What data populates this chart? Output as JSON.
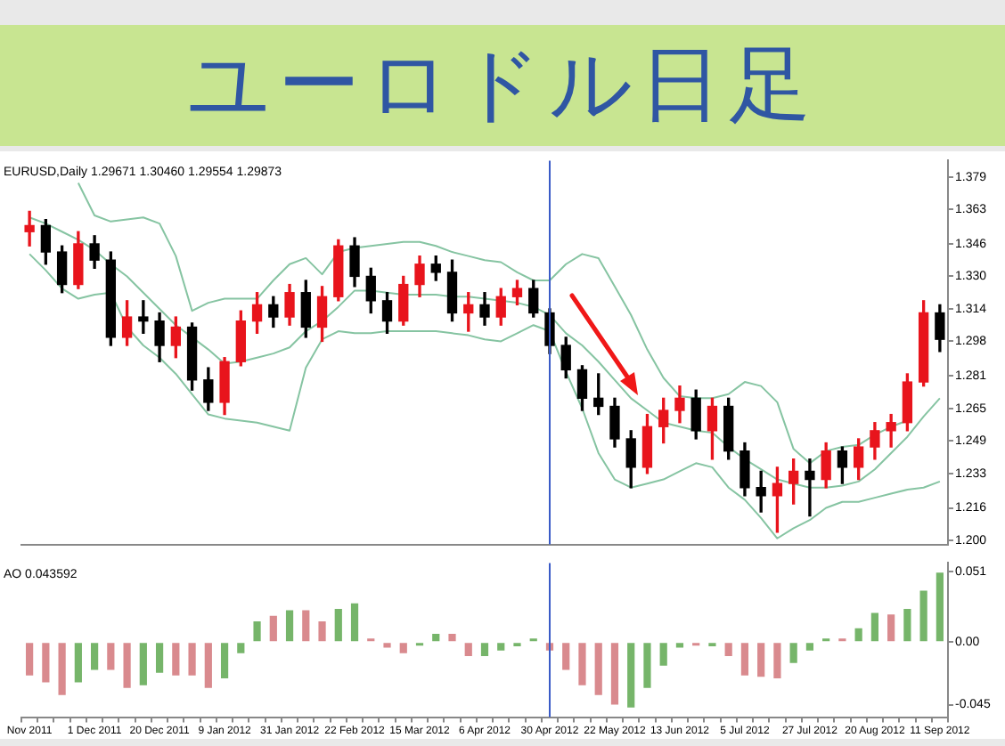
{
  "chart_data": [
    {
      "type": "candlestick",
      "title": "ユーロドル日足",
      "annotations": [
        "EURUSD,Daily 1.29671 1.30460 1.29554 1.29873"
      ],
      "categories": [
        "Nov 2011",
        null,
        null,
        null,
        "1 Dec 2011",
        null,
        null,
        null,
        "20 Dec 2011",
        null,
        null,
        null,
        "9 Jan 2012",
        null,
        null,
        null,
        "31 Jan 2012",
        null,
        null,
        null,
        "22 Feb 2012",
        null,
        null,
        null,
        "15 Mar 2012",
        null,
        null,
        null,
        "6 Apr 2012",
        null,
        null,
        null,
        "30 Apr 2012",
        null,
        null,
        null,
        "22 May 2012",
        null,
        null,
        null,
        "13 Jun 2012",
        null,
        null,
        null,
        "5 Jul 2012",
        null,
        null,
        null,
        "27 Jul 2012",
        null,
        null,
        null,
        "20 Aug 2012",
        null,
        null,
        null,
        "11 Sep 2012"
      ],
      "ohlc": [
        [
          1.352,
          1.362,
          1.345,
          1.355
        ],
        [
          1.355,
          1.358,
          1.336,
          1.342
        ],
        [
          1.342,
          1.345,
          1.322,
          1.326
        ],
        [
          1.326,
          1.352,
          1.324,
          1.346
        ],
        [
          1.346,
          1.35,
          1.334,
          1.338
        ],
        [
          1.338,
          1.342,
          1.296,
          1.3
        ],
        [
          1.3,
          1.318,
          1.296,
          1.31
        ],
        [
          1.31,
          1.318,
          1.302,
          1.308
        ],
        [
          1.308,
          1.312,
          1.288,
          1.296
        ],
        [
          1.296,
          1.31,
          1.29,
          1.305
        ],
        [
          1.305,
          1.307,
          1.274,
          1.279
        ],
        [
          1.279,
          1.285,
          1.264,
          1.268
        ],
        [
          1.268,
          1.29,
          1.262,
          1.288
        ],
        [
          1.288,
          1.313,
          1.286,
          1.308
        ],
        [
          1.308,
          1.322,
          1.302,
          1.316
        ],
        [
          1.316,
          1.32,
          1.305,
          1.31
        ],
        [
          1.31,
          1.326,
          1.306,
          1.322
        ],
        [
          1.322,
          1.328,
          1.3,
          1.305
        ],
        [
          1.305,
          1.325,
          1.298,
          1.32
        ],
        [
          1.32,
          1.348,
          1.318,
          1.345
        ],
        [
          1.345,
          1.349,
          1.325,
          1.33
        ],
        [
          1.33,
          1.334,
          1.312,
          1.318
        ],
        [
          1.318,
          1.322,
          1.302,
          1.308
        ],
        [
          1.308,
          1.33,
          1.306,
          1.326
        ],
        [
          1.326,
          1.34,
          1.32,
          1.336
        ],
        [
          1.336,
          1.34,
          1.328,
          1.332
        ],
        [
          1.332,
          1.338,
          1.308,
          1.312
        ],
        [
          1.312,
          1.322,
          1.303,
          1.316
        ],
        [
          1.316,
          1.322,
          1.306,
          1.31
        ],
        [
          1.31,
          1.324,
          1.306,
          1.32
        ],
        [
          1.32,
          1.328,
          1.316,
          1.324
        ],
        [
          1.324,
          1.328,
          1.31,
          1.312
        ],
        [
          1.312,
          1.314,
          1.292,
          1.296
        ],
        [
          1.296,
          1.3,
          1.28,
          1.284
        ],
        [
          1.284,
          1.286,
          1.264,
          1.27
        ],
        [
          1.27,
          1.282,
          1.262,
          1.266
        ],
        [
          1.266,
          1.27,
          1.246,
          1.25
        ],
        [
          1.25,
          1.254,
          1.226,
          1.236
        ],
        [
          1.236,
          1.262,
          1.233,
          1.256
        ],
        [
          1.256,
          1.27,
          1.248,
          1.264
        ],
        [
          1.264,
          1.276,
          1.258,
          1.27
        ],
        [
          1.27,
          1.274,
          1.25,
          1.254
        ],
        [
          1.254,
          1.27,
          1.24,
          1.266
        ],
        [
          1.266,
          1.27,
          1.24,
          1.244
        ],
        [
          1.244,
          1.248,
          1.222,
          1.226
        ],
        [
          1.226,
          1.234,
          1.214,
          1.222
        ],
        [
          1.222,
          1.236,
          1.204,
          1.228
        ],
        [
          1.228,
          1.24,
          1.218,
          1.234
        ],
        [
          1.234,
          1.24,
          1.212,
          1.23
        ],
        [
          1.23,
          1.248,
          1.226,
          1.244
        ],
        [
          1.244,
          1.246,
          1.228,
          1.236
        ],
        [
          1.236,
          1.25,
          1.23,
          1.246
        ],
        [
          1.246,
          1.258,
          1.24,
          1.254
        ],
        [
          1.254,
          1.262,
          1.246,
          1.258
        ],
        [
          1.258,
          1.282,
          1.254,
          1.278
        ],
        [
          1.278,
          1.318,
          1.276,
          1.312
        ],
        [
          1.312,
          1.316,
          1.293,
          1.299
        ]
      ],
      "colors": [
        "#e8141c",
        "#000000",
        "#000000",
        "#e8141c",
        "#000000",
        "#000000",
        "#e8141c",
        "#000000",
        "#000000",
        "#e8141c",
        "#000000",
        "#000000",
        "#e8141c",
        "#e8141c",
        "#e8141c",
        "#000000",
        "#e8141c",
        "#000000",
        "#e8141c",
        "#e8141c",
        "#000000",
        "#000000",
        "#000000",
        "#e8141c",
        "#e8141c",
        "#000000",
        "#000000",
        "#e8141c",
        "#000000",
        "#e8141c",
        "#e8141c",
        "#000000",
        "#000000",
        "#000000",
        "#000000",
        "#000000",
        "#000000",
        "#000000",
        "#e8141c",
        "#e8141c",
        "#e8141c",
        "#000000",
        "#e8141c",
        "#000000",
        "#000000",
        "#000000",
        "#e8141c",
        "#e8141c",
        "#000000",
        "#e8141c",
        "#000000",
        "#e8141c",
        "#e8141c",
        "#e8141c",
        "#e8141c",
        "#e8141c",
        "#000000"
      ],
      "series": [
        {
          "type": "line",
          "color": "#86c4a2",
          "values": [
            null,
            null,
            null,
            1.376,
            1.36,
            1.357,
            1.358,
            1.359,
            1.356,
            1.34,
            1.313,
            1.317,
            1.319,
            1.319,
            1.319,
            1.328,
            1.336,
            1.339,
            1.331,
            1.342,
            1.344,
            1.345,
            1.346,
            1.347,
            1.347,
            1.345,
            1.342,
            1.34,
            1.338,
            1.337,
            1.332,
            1.328,
            1.328,
            1.336,
            1.341,
            1.339,
            1.325,
            1.311,
            1.294,
            1.28,
            1.271,
            1.27,
            1.27,
            1.272,
            1.278,
            1.276,
            1.268,
            1.245,
            1.238,
            1.244,
            1.246,
            1.247,
            1.252,
            1.256,
            1.259,
            null,
            null
          ]
        },
        {
          "type": "line",
          "color": "#86c4a2",
          "values": [
            1.359,
            1.356,
            1.352,
            1.348,
            1.343,
            1.336,
            1.33,
            1.322,
            1.314,
            1.306,
            1.3,
            1.294,
            1.287,
            1.288,
            1.29,
            1.292,
            1.295,
            1.303,
            1.308,
            1.315,
            1.323,
            1.323,
            1.322,
            1.321,
            1.321,
            1.321,
            1.32,
            1.32,
            1.319,
            1.318,
            1.317,
            1.315,
            1.311,
            1.302,
            1.296,
            1.288,
            1.279,
            1.27,
            1.264,
            1.258,
            1.256,
            1.254,
            1.253,
            1.246,
            1.24,
            1.235,
            1.23,
            1.228,
            1.226,
            1.226,
            1.227,
            1.229,
            1.235,
            1.243,
            1.251,
            1.261,
            1.27
          ]
        },
        {
          "type": "line",
          "color": "#86c4a2",
          "values": [
            1.341,
            1.333,
            1.324,
            1.319,
            1.321,
            1.322,
            1.305,
            1.296,
            1.29,
            1.282,
            1.272,
            1.262,
            1.26,
            1.259,
            1.258,
            1.256,
            1.254,
            1.285,
            1.299,
            1.303,
            1.302,
            1.302,
            1.303,
            1.303,
            1.303,
            1.303,
            1.302,
            1.301,
            1.299,
            1.298,
            1.302,
            1.306,
            1.303,
            1.283,
            1.265,
            1.243,
            1.23,
            1.226,
            1.228,
            1.23,
            1.234,
            1.238,
            1.236,
            1.226,
            1.22,
            1.211,
            1.201,
            1.206,
            1.21,
            1.216,
            1.219,
            1.219,
            1.221,
            1.223,
            1.225,
            1.226,
            1.229
          ]
        }
      ],
      "ylim": [
        1.198,
        1.387
      ],
      "yticks": [
        1.379,
        1.363,
        1.346,
        {
          "value": 1.33,
          "label": "1.330"
        },
        1.314,
        1.298,
        1.281,
        1.265,
        1.249,
        1.233,
        1.216,
        {
          "value": 1.2,
          "label": "1.200"
        }
      ],
      "ref_lines": [
        {
          "axis": "x",
          "value": "30 Apr 2012",
          "color": "#3a5bc7"
        }
      ],
      "tick_labels": "y"
    },
    {
      "type": "bar",
      "annotations": [
        "AO 0.043592"
      ],
      "categories": [
        "Nov 2011",
        null,
        null,
        null,
        "1 Dec 2011",
        null,
        null,
        null,
        "20 Dec 2011",
        null,
        null,
        null,
        "9 Jan 2012",
        null,
        null,
        null,
        "31 Jan 2012",
        null,
        null,
        null,
        "22 Feb 2012",
        null,
        null,
        null,
        "15 Mar 2012",
        null,
        null,
        null,
        "6 Apr 2012",
        null,
        null,
        null,
        "30 Apr 2012",
        null,
        null,
        null,
        "22 May 2012",
        null,
        null,
        null,
        "13 Jun 2012",
        null,
        null,
        null,
        "5 Jul 2012",
        null,
        null,
        null,
        "27 Jul 2012",
        null,
        null,
        null,
        "20 Aug 2012",
        null,
        null,
        null,
        "11 Sep 2012"
      ],
      "values": [
        -0.024,
        -0.029,
        -0.038,
        -0.029,
        -0.02,
        -0.02,
        -0.033,
        -0.031,
        -0.022,
        -0.024,
        -0.024,
        -0.033,
        -0.026,
        -0.008,
        0.015,
        0.019,
        0.023,
        0.023,
        0.015,
        0.024,
        0.028,
        0.001,
        -0.004,
        -0.008,
        -0.001,
        0.006,
        0.006,
        -0.01,
        -0.01,
        -0.006,
        -0.003,
        0.002,
        -0.006,
        -0.02,
        -0.031,
        -0.038,
        -0.045,
        -0.047,
        -0.033,
        -0.017,
        -0.004,
        -0.001,
        -0.003,
        -0.01,
        -0.024,
        -0.025,
        -0.026,
        -0.015,
        -0.006,
        0.002,
        0.001,
        0.01,
        0.021,
        0.02,
        0.024,
        0.037,
        0.05
      ],
      "colors": [
        "#d98a8e",
        "#d98a8e",
        "#d98a8e",
        "#76b56a",
        "#76b56a",
        "#d98a8e",
        "#d98a8e",
        "#76b56a",
        "#76b56a",
        "#d98a8e",
        "#d98a8e",
        "#d98a8e",
        "#76b56a",
        "#76b56a",
        "#76b56a",
        "#d98a8e",
        "#76b56a",
        "#d98a8e",
        "#d98a8e",
        "#76b56a",
        "#76b56a",
        "#d98a8e",
        "#d98a8e",
        "#d98a8e",
        "#76b56a",
        "#76b56a",
        "#d98a8e",
        "#d98a8e",
        "#76b56a",
        "#76b56a",
        "#76b56a",
        "#76b56a",
        "#d98a8e",
        "#d98a8e",
        "#d98a8e",
        "#d98a8e",
        "#d98a8e",
        "#76b56a",
        "#76b56a",
        "#76b56a",
        "#76b56a",
        "#d98a8e",
        "#76b56a",
        "#d98a8e",
        "#d98a8e",
        "#d98a8e",
        "#d98a8e",
        "#76b56a",
        "#76b56a",
        "#76b56a",
        "#d98a8e",
        "#76b56a",
        "#76b56a",
        "#d98a8e",
        "#76b56a",
        "#76b56a",
        "#76b56a"
      ],
      "ylim": [
        -0.054,
        0.057
      ],
      "yticks": [
        0.051,
        {
          "value": 0,
          "label": "0.00"
        },
        -0.045
      ],
      "ref_lines": [
        {
          "axis": "x",
          "value": "30 Apr 2012",
          "color": "#3a5bc7"
        }
      ]
    }
  ]
}
